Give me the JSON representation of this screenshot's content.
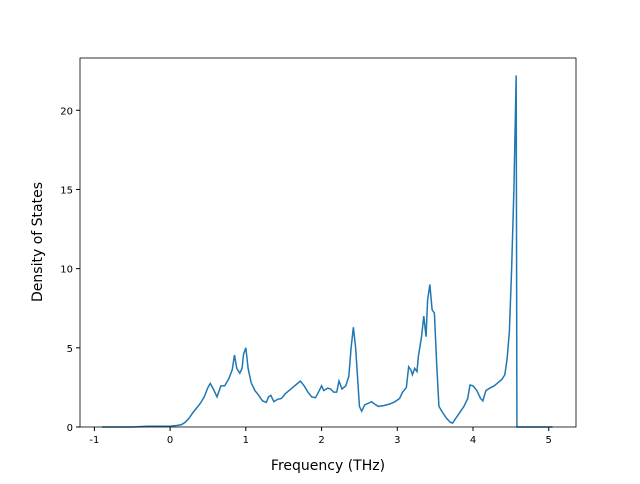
{
  "chart_data": {
    "type": "line",
    "x_label": "Frequency (THz)",
    "y_label": "Density of States",
    "x": [
      -0.9,
      -0.5,
      -0.3,
      0,
      0.1,
      0.15,
      0.2,
      0.25,
      0.3,
      0.35,
      0.4,
      0.45,
      0.5,
      0.53,
      0.57,
      0.62,
      0.67,
      0.72,
      0.77,
      0.82,
      0.85,
      0.88,
      0.92,
      0.95,
      0.97,
      1.0,
      1.03,
      1.07,
      1.12,
      1.17,
      1.22,
      1.27,
      1.3,
      1.33,
      1.37,
      1.42,
      1.47,
      1.52,
      1.57,
      1.62,
      1.67,
      1.72,
      1.77,
      1.82,
      1.87,
      1.92,
      1.97,
      2.0,
      2.03,
      2.08,
      2.12,
      2.16,
      2.2,
      2.23,
      2.27,
      2.32,
      2.36,
      2.39,
      2.42,
      2.45,
      2.48,
      2.5,
      2.53,
      2.57,
      2.62,
      2.66,
      2.7,
      2.75,
      2.82,
      2.9,
      2.97,
      3.03,
      3.07,
      3.12,
      3.15,
      3.18,
      3.2,
      3.23,
      3.26,
      3.28,
      3.32,
      3.35,
      3.38,
      3.4,
      3.43,
      3.46,
      3.49,
      3.52,
      3.55,
      3.6,
      3.65,
      3.7,
      3.73,
      3.78,
      3.83,
      3.88,
      3.93,
      3.96,
      4.0,
      4.05,
      4.1,
      4.13,
      4.17,
      4.22,
      4.28,
      4.33,
      4.38,
      4.42,
      4.45,
      4.48,
      4.51,
      4.54,
      4.57,
      4.58,
      4.7,
      5.05
    ],
    "series": [
      {
        "color": "#1f77b4",
        "values": [
          0,
          0,
          0.05,
          0.05,
          0.1,
          0.15,
          0.3,
          0.55,
          0.9,
          1.2,
          1.5,
          1.9,
          2.5,
          2.75,
          2.4,
          1.9,
          2.6,
          2.6,
          3.0,
          3.6,
          4.55,
          3.7,
          3.4,
          3.7,
          4.6,
          5.0,
          3.7,
          2.8,
          2.3,
          2.0,
          1.65,
          1.55,
          1.9,
          2.0,
          1.6,
          1.75,
          1.8,
          2.1,
          2.3,
          2.5,
          2.7,
          2.9,
          2.6,
          2.2,
          1.9,
          1.85,
          2.3,
          2.6,
          2.3,
          2.45,
          2.4,
          2.2,
          2.2,
          2.9,
          2.4,
          2.6,
          3.2,
          5.0,
          6.3,
          5.0,
          2.8,
          1.3,
          1.0,
          1.4,
          1.5,
          1.6,
          1.45,
          1.3,
          1.35,
          1.45,
          1.6,
          1.8,
          2.2,
          2.5,
          3.8,
          3.6,
          3.3,
          3.7,
          3.5,
          4.5,
          5.7,
          7.0,
          5.7,
          8.0,
          9.0,
          7.4,
          7.2,
          4.0,
          1.3,
          0.9,
          0.55,
          0.3,
          0.25,
          0.6,
          0.95,
          1.3,
          1.8,
          2.65,
          2.6,
          2.3,
          1.8,
          1.65,
          2.3,
          2.45,
          2.6,
          2.8,
          3.0,
          3.3,
          4.3,
          6.0,
          10,
          15,
          22.2,
          0,
          0,
          0
        ]
      }
    ],
    "xlim": [
      -1.19,
      5.36
    ],
    "xticks": [
      -1,
      0,
      1,
      2,
      3,
      4,
      5
    ],
    "ylim": [
      0,
      23.3
    ],
    "yticks": [
      0,
      5,
      10,
      15,
      20
    ]
  }
}
